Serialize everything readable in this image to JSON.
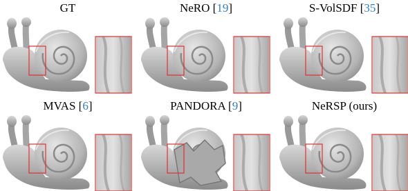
{
  "panels": [
    {
      "title_parts": [
        {
          "text": "GT"
        }
      ]
    },
    {
      "title_parts": [
        {
          "text": "NeRO ["
        },
        {
          "text": "19",
          "link": true
        },
        {
          "text": "]"
        }
      ]
    },
    {
      "title_parts": [
        {
          "text": "S-VolSDF ["
        },
        {
          "text": "35",
          "link": true
        },
        {
          "text": "]"
        }
      ]
    },
    {
      "title_parts": [
        {
          "text": "MVAS ["
        },
        {
          "text": "6",
          "link": true
        },
        {
          "text": "]"
        }
      ]
    },
    {
      "title_parts": [
        {
          "text": "PANDORA ["
        },
        {
          "text": "9",
          "link": true
        },
        {
          "text": "]"
        }
      ]
    },
    {
      "title_parts": [
        {
          "text": "NeRSP (ours)"
        }
      ]
    }
  ]
}
